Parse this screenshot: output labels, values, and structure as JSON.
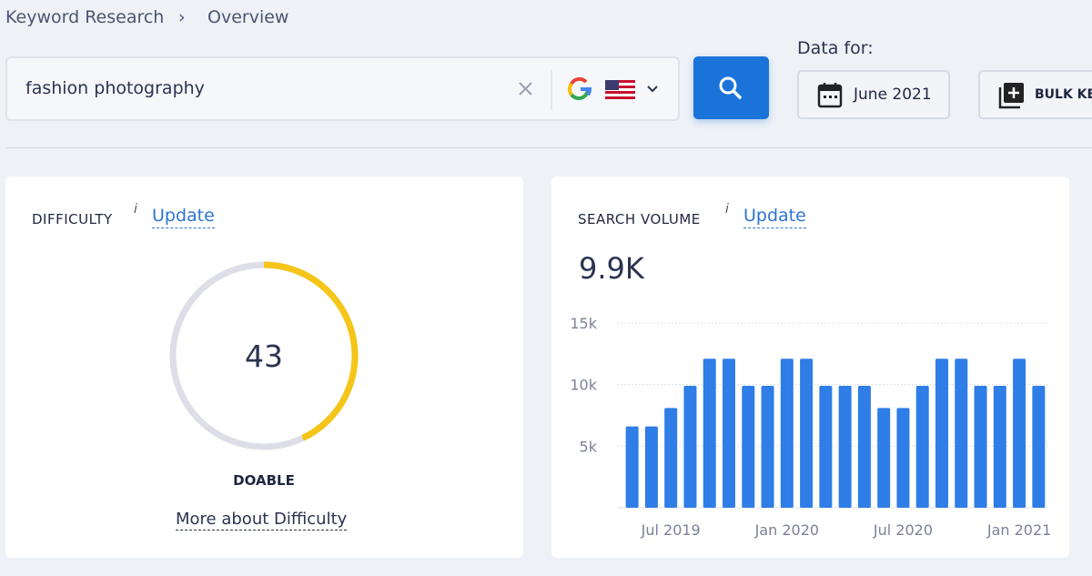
{
  "breadcrumb": [
    "Keyword Research",
    "Overview"
  ],
  "search": {
    "query": "fashion photography"
  },
  "data_for": {
    "label": "Data for:",
    "date": "June 2021"
  },
  "bulk_button": "BULK KE",
  "difficulty": {
    "title": "DIFFICULTY",
    "info": "i",
    "update": "Update",
    "value": 43,
    "level": "DOABLE",
    "more": "More about Difficulty"
  },
  "search_volume": {
    "title": "SEARCH VOLUME",
    "info": "i",
    "update": "Update",
    "total": "9.9K"
  },
  "chart_data": {
    "type": "bar",
    "categories": [
      null,
      null,
      "Jul 2019",
      null,
      null,
      null,
      null,
      null,
      "Jan 2020",
      null,
      null,
      null,
      null,
      null,
      "Jul 2020",
      null,
      null,
      null,
      null,
      null,
      "Jan 2021",
      null
    ],
    "values": [
      6600,
      6600,
      8100,
      9900,
      12100,
      12100,
      9900,
      9900,
      12100,
      12100,
      9900,
      9900,
      9900,
      8100,
      8100,
      9900,
      12100,
      12100,
      9900,
      9900,
      12100,
      9900
    ],
    "color": "#2f7de6",
    "ylim": [
      0,
      15000
    ],
    "yticks": [
      {
        "value": 5000,
        "label": "5k"
      },
      {
        "value": 10000,
        "label": "10k"
      },
      {
        "value": 15000,
        "label": "15k"
      }
    ],
    "grid": true
  }
}
